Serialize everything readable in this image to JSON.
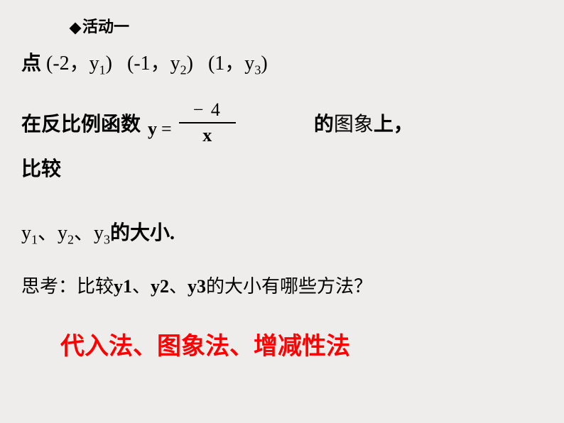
{
  "header": {
    "text": "活动一"
  },
  "line1": {
    "label": "点",
    "p1_open": "(-2，y",
    "p1_sub": "1",
    "p1_close": ")",
    "p2_open": "(-1，y",
    "p2_sub": "2",
    "p2_close": ")",
    "p3_open": "(1，y",
    "p3_sub": "3",
    "p3_close": ")"
  },
  "line2": {
    "left": "在反比例函数",
    "y": "y",
    "equals": "=",
    "numerator": "− 4",
    "denominator": "x",
    "right_bold1": "的",
    "right_normal": "图象",
    "right_bold2": "上，"
  },
  "line2b": {
    "text": "比较"
  },
  "line3": {
    "y1": "y",
    "s1": "1",
    "sep1": "、",
    "y2": "y",
    "s2": "2",
    "sep2": "、",
    "y3": "y",
    "s3": "3",
    "tail": "的大小."
  },
  "line4": {
    "prefix": "思考：比较",
    "y1": "y1",
    "sep1": "、",
    "y2": "y2",
    "sep2": "、",
    "y3": "y3",
    "suffix": "的大小有哪些方法？"
  },
  "line5": {
    "text": "代入法、图象法、增减性法"
  },
  "colors": {
    "background": "#eeedeb",
    "text": "#000000",
    "accent": "#ff0000"
  }
}
